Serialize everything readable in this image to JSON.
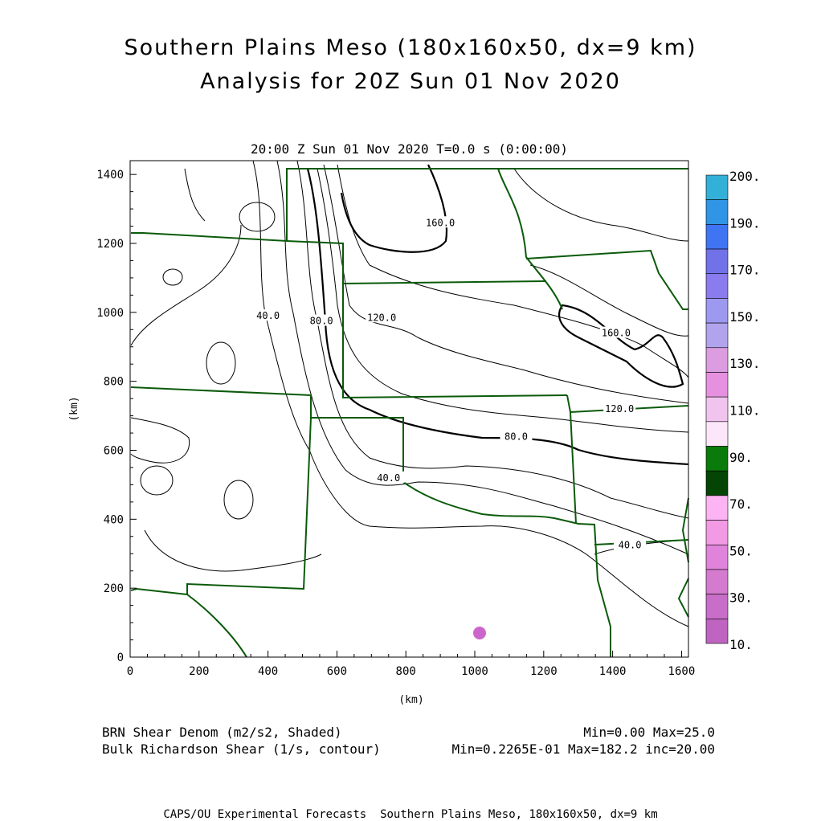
{
  "header": {
    "title_line1": "Southern Plains Meso (180x160x50, dx=9 km)",
    "title_line2": "Analysis for 20Z Sun 01 Nov 2020",
    "valid_time": "20:00 Z Sun 01 Nov 2020    T=0.0 s (0:00:00)"
  },
  "map": {
    "x_axis_label": "(km)",
    "y_axis_label": "(km)",
    "x_ticks": [
      "0",
      "200",
      "400",
      "600",
      "800",
      "1000",
      "1200",
      "1400",
      "1600"
    ],
    "y_ticks": [
      "0",
      "200",
      "400",
      "600",
      "800",
      "1000",
      "1200",
      "1400"
    ],
    "x_range_km": [
      0,
      1620
    ],
    "y_range_km": [
      0,
      1440
    ],
    "contour_labels": [
      {
        "text": "160.0",
        "x": 900,
        "y": 1260
      },
      {
        "text": "160.0",
        "x": 1410,
        "y": 940
      },
      {
        "text": "120.0",
        "x": 730,
        "y": 985
      },
      {
        "text": "120.0",
        "x": 1420,
        "y": 720
      },
      {
        "text": "80.0",
        "x": 1120,
        "y": 640
      },
      {
        "text": "80.0",
        "x": 555,
        "y": 975
      },
      {
        "text": "40.0",
        "x": 400,
        "y": 990
      },
      {
        "text": "40.0",
        "x": 750,
        "y": 520
      },
      {
        "text": "40.0",
        "x": 1450,
        "y": 325
      }
    ],
    "colors": {
      "border": "#0a5a0a",
      "contour": "#000000",
      "blob": "#cc66cc"
    }
  },
  "colorbar": {
    "levels": [
      "200.",
      "190.",
      "170.",
      "150.",
      "130.",
      "110.",
      "90.",
      "70.",
      "50.",
      "30.",
      "10."
    ],
    "colors": [
      "#33b0d8",
      "#2f95e4",
      "#3f75f2",
      "#7172e8",
      "#8a7cee",
      "#9d98f0",
      "#b2a4ec",
      "#dc9de0",
      "#e591df",
      "#f1c4ee",
      "#fce6f9",
      "#0a7a0a",
      "#044404",
      "#fcb4f4",
      "#f29ae4",
      "#e083da",
      "#d47bd0",
      "#c86ec8",
      "#bf64c0"
    ]
  },
  "legend": {
    "shaded_name": "BRN Shear Denom (m2/s2, Shaded)",
    "shaded_range": "Min=0.00 Max=25.0",
    "contour_name": "Bulk Richardson Shear (1/s, contour)",
    "contour_range": "Min=0.2265E-01 Max=182.2 inc=20.00"
  },
  "footer": {
    "credit": "CAPS/OU Experimental Forecasts  Southern Plains Meso, 180x160x50, dx=9 km"
  }
}
